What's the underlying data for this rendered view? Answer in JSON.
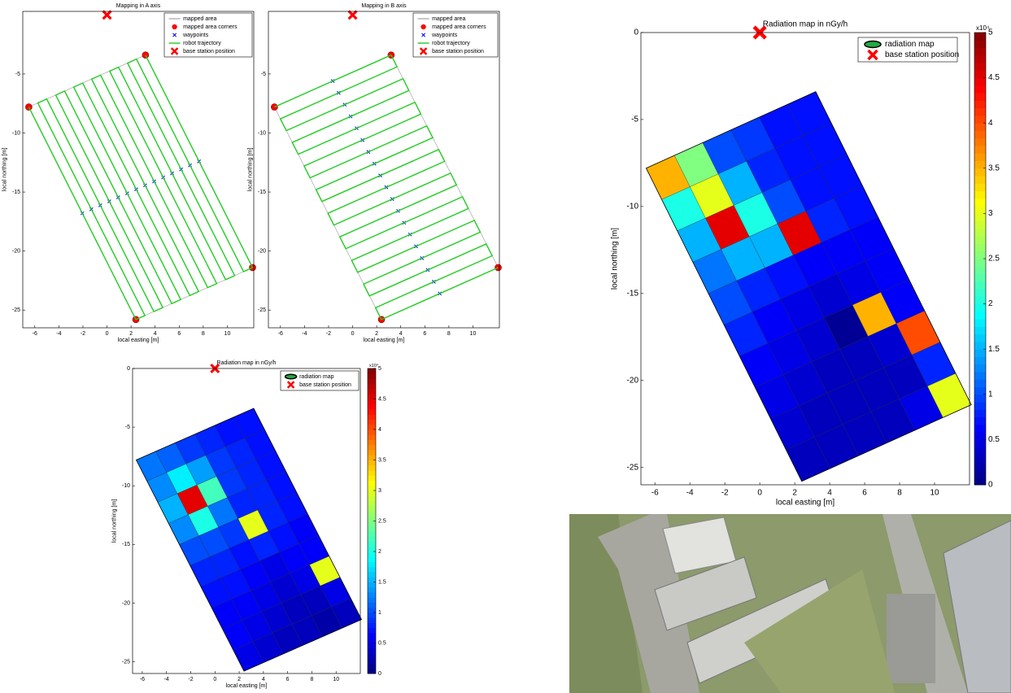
{
  "chart_data": [
    {
      "type": "line",
      "title": "Mapping in A axis",
      "xlabel": "local easting [m]",
      "ylabel": "local northing [m]",
      "xlim": [
        -7,
        12.2
      ],
      "ylim": [
        -26.5,
        0.3
      ],
      "xticks": [
        -6,
        -4,
        -2,
        0,
        2,
        4,
        6,
        8,
        10
      ],
      "yticks": [
        -25,
        -20,
        -15,
        -10,
        -5
      ],
      "series": [
        {
          "name": "mapped area",
          "style": "polygon",
          "color": "#b0b0b0",
          "x": [
            -6.5,
            3.2,
            12.1,
            2.4
          ],
          "y": [
            -7.8,
            -3.4,
            -21.4,
            -25.8
          ]
        },
        {
          "name": "mapped area corners",
          "marker": "o",
          "color": "#ff0000",
          "x": [
            -6.5,
            3.2,
            12.1,
            2.4
          ],
          "y": [
            -7.8,
            -3.4,
            -21.4,
            -25.8
          ]
        },
        {
          "name": "waypoints",
          "marker": "x",
          "color": "#0000ff",
          "x": [
            -2.05,
            -1.3,
            -0.56,
            0.19,
            0.93,
            1.68,
            2.43,
            3.17,
            3.92,
            4.67,
            5.41,
            6.16,
            6.9,
            7.65
          ],
          "y": [
            -16.8,
            -16.46,
            -16.12,
            -15.79,
            -15.45,
            -15.11,
            -14.77,
            -14.43,
            -14.1,
            -13.76,
            -13.42,
            -13.08,
            -12.74,
            -12.4
          ]
        },
        {
          "name": "robot trajectory",
          "style": "line",
          "color": "#22cc22",
          "x": [
            -6.5,
            2.4,
            3.15,
            -5.75,
            -5.01,
            3.89,
            4.64,
            -4.26,
            -3.52,
            5.38,
            6.13,
            -2.77,
            -2.02,
            6.88,
            7.62,
            -1.28,
            -0.53,
            8.37,
            9.12,
            0.22,
            0.96,
            9.86,
            10.61,
            1.71,
            2.45,
            11.35,
            12.1,
            3.2
          ],
          "y": [
            -7.8,
            -25.8,
            -25.46,
            -7.46,
            -7.12,
            -25.12,
            -24.79,
            -6.79,
            -6.45,
            -24.45,
            -24.11,
            -6.11,
            -5.77,
            -23.77,
            -23.43,
            -5.43,
            -5.1,
            -23.1,
            -22.76,
            -4.76,
            -4.42,
            -22.42,
            -22.08,
            -4.08,
            -3.74,
            -21.74,
            -21.4,
            -3.4
          ]
        },
        {
          "name": "base station position",
          "marker": "X",
          "color": "#ff0000",
          "x": [
            0
          ],
          "y": [
            0
          ]
        }
      ]
    },
    {
      "type": "line",
      "title": "Mapping in B axis",
      "xlabel": "local easting [m]",
      "ylabel": "local northing [m]",
      "xlim": [
        -7,
        12.2
      ],
      "ylim": [
        -26.5,
        0.3
      ],
      "xticks": [
        -6,
        -4,
        -2,
        0,
        2,
        4,
        6,
        8,
        10
      ],
      "yticks": [
        -25,
        -20,
        -15,
        -10,
        -5
      ],
      "series": [
        {
          "name": "mapped area",
          "style": "polygon",
          "color": "#b0b0b0",
          "x": [
            -6.5,
            3.2,
            12.1,
            2.4
          ],
          "y": [
            -7.8,
            -3.4,
            -21.4,
            -25.8
          ]
        },
        {
          "name": "mapped area corners",
          "marker": "o",
          "color": "#ff0000",
          "x": [
            -6.5,
            3.2,
            12.1,
            2.4
          ],
          "y": [
            -7.8,
            -3.4,
            -21.4,
            -25.8
          ]
        },
        {
          "name": "waypoints",
          "marker": "x",
          "color": "#0000ff",
          "x": [
            -1.65,
            -1.16,
            -0.66,
            -0.17,
            0.33,
            0.82,
            1.31,
            1.81,
            2.3,
            2.8,
            3.29,
            3.78,
            4.28,
            4.77,
            5.27,
            5.76,
            6.25,
            6.75,
            7.24
          ],
          "y": [
            -5.6,
            -6.6,
            -7.6,
            -8.6,
            -9.6,
            -10.6,
            -11.6,
            -12.6,
            -13.6,
            -14.6,
            -15.6,
            -16.6,
            -17.6,
            -18.6,
            -19.6,
            -20.6,
            -21.6,
            -22.6,
            -23.6
          ]
        },
        {
          "name": "robot trajectory",
          "style": "line",
          "color": "#22cc22",
          "x": [
            -6.5,
            3.2,
            3.69,
            -6.01,
            -5.51,
            4.19,
            4.68,
            -5.02,
            -4.52,
            5.18,
            5.67,
            -4.03,
            -3.54,
            6.16,
            6.66,
            -3.04,
            -2.55,
            7.15,
            7.65,
            -2.05,
            -1.56,
            8.14,
            8.63,
            -1.07,
            -0.57,
            9.13,
            9.62,
            -0.08,
            0.42,
            10.12,
            10.61,
            0.91,
            1.4,
            11.1,
            11.6,
            1.9,
            2.39,
            12.09
          ],
          "y": [
            -7.8,
            -3.4,
            -4.4,
            -8.8,
            -9.8,
            -5.4,
            -6.4,
            -10.8,
            -11.8,
            -7.4,
            -8.4,
            -12.8,
            -13.8,
            -9.4,
            -10.4,
            -14.8,
            -15.8,
            -11.4,
            -12.4,
            -16.8,
            -17.8,
            -13.4,
            -14.4,
            -18.8,
            -19.8,
            -15.4,
            -16.4,
            -20.8,
            -21.8,
            -17.4,
            -18.4,
            -22.8,
            -23.8,
            -19.4,
            -20.4,
            -24.8,
            -25.8,
            -21.4
          ]
        },
        {
          "name": "base station position",
          "marker": "X",
          "color": "#ff0000",
          "x": [
            0
          ],
          "y": [
            0
          ]
        }
      ]
    },
    {
      "type": "heatmap",
      "title": "Radiation map in nGy/h",
      "xlabel": "local easting [m]",
      "ylabel": "local northing [m]",
      "xlim": [
        -6.8,
        12
      ],
      "ylim": [
        -26,
        0
      ],
      "xticks": [
        -6,
        -4,
        -2,
        0,
        2,
        4,
        6,
        8,
        10
      ],
      "yticks": [
        -25,
        -20,
        -15,
        -10,
        -5,
        0
      ],
      "colormap": "jet",
      "clim": [
        0,
        5
      ],
      "cticks": [
        0,
        0.5,
        1,
        1.5,
        2,
        2.5,
        3,
        3.5,
        4,
        4.5,
        5
      ],
      "colorbar_exponent": "x10⁴",
      "values": [
        [
          1.2,
          1.1,
          0.9,
          0.8,
          0.7,
          0.7
        ],
        [
          1.3,
          1.8,
          1.4,
          0.9,
          0.8,
          0.7
        ],
        [
          1.5,
          4.5,
          2.2,
          0.9,
          0.8,
          0.7
        ],
        [
          1.3,
          2.0,
          1.2,
          0.8,
          0.8,
          0.7
        ],
        [
          1.0,
          1.0,
          0.9,
          3.0,
          0.8,
          0.7
        ],
        [
          0.8,
          0.8,
          0.7,
          0.8,
          0.7,
          0.6
        ],
        [
          0.7,
          0.7,
          0.6,
          0.5,
          0.6,
          0.6
        ],
        [
          0.6,
          0.6,
          0.5,
          0.4,
          0.5,
          3.0
        ],
        [
          0.6,
          0.5,
          0.4,
          0.3,
          0.3,
          0.5
        ],
        [
          0.5,
          0.4,
          0.3,
          0.3,
          0.2,
          0.3
        ]
      ],
      "series": [
        {
          "name": "radiation map",
          "style": "polygon",
          "color": "#000000",
          "x": [
            -6.5,
            3.2,
            12.1,
            2.4
          ],
          "y": [
            -7.8,
            -3.4,
            -21.4,
            -25.8
          ]
        },
        {
          "name": "base station position",
          "marker": "X",
          "color": "#ff0000",
          "x": [
            0
          ],
          "y": [
            0
          ]
        }
      ]
    },
    {
      "type": "heatmap",
      "title": "Radiation map in nGy/h",
      "xlabel": "local easting [m]",
      "ylabel": "local northing [m]",
      "xlim": [
        -6.8,
        12
      ],
      "ylim": [
        -26,
        0
      ],
      "xticks": [
        -6,
        -4,
        -2,
        0,
        2,
        4,
        6,
        8,
        10
      ],
      "yticks": [
        -25,
        -20,
        -15,
        -10,
        -5,
        0
      ],
      "colormap": "jet",
      "clim": [
        0,
        5
      ],
      "cticks": [
        0,
        0.5,
        1,
        1.5,
        2,
        2.5,
        3,
        3.5,
        4,
        4.5,
        5
      ],
      "colorbar_exponent": "x10⁴",
      "values": [
        [
          3.5,
          2.5,
          1.0,
          0.9,
          0.7,
          0.7
        ],
        [
          2.0,
          3.0,
          1.5,
          0.8,
          0.7,
          0.7
        ],
        [
          1.5,
          4.5,
          2.0,
          1.0,
          0.7,
          0.7
        ],
        [
          1.2,
          1.5,
          1.5,
          4.5,
          0.8,
          0.7
        ],
        [
          1.0,
          0.8,
          0.7,
          0.6,
          0.6,
          0.6
        ],
        [
          0.8,
          0.6,
          0.5,
          0.4,
          0.5,
          0.6
        ],
        [
          0.6,
          0.5,
          0.4,
          0.1,
          3.5,
          0.6
        ],
        [
          0.5,
          0.4,
          0.3,
          0.3,
          0.4,
          4.0
        ],
        [
          0.4,
          0.3,
          0.3,
          0.3,
          0.3,
          0.8
        ],
        [
          0.3,
          0.3,
          0.3,
          0.3,
          0.5,
          3.0
        ]
      ],
      "series": [
        {
          "name": "radiation map",
          "style": "polygon",
          "color": "#000000",
          "x": [
            -6.5,
            3.2,
            12.1,
            2.4
          ],
          "y": [
            -7.8,
            -3.4,
            -21.4,
            -25.8
          ]
        },
        {
          "name": "base station position",
          "marker": "X",
          "color": "#ff0000",
          "x": [
            0
          ],
          "y": [
            0
          ]
        }
      ]
    }
  ]
}
